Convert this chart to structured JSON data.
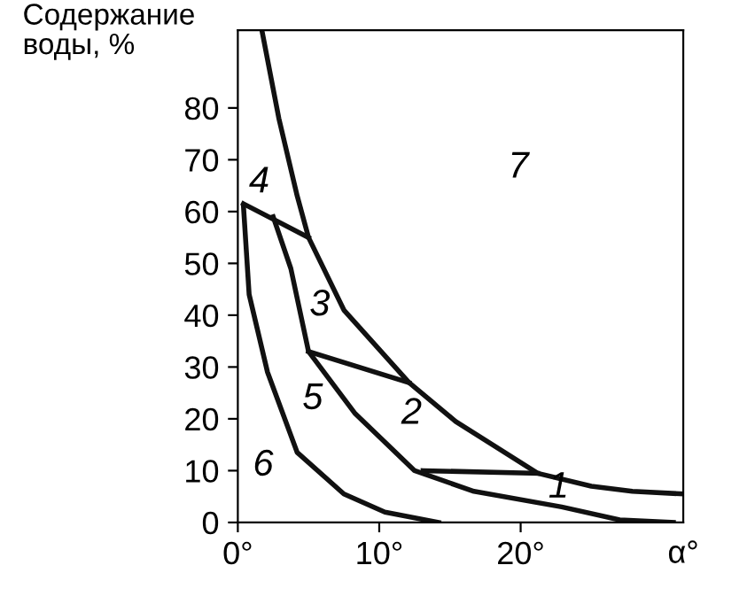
{
  "chart_data": {
    "type": "line",
    "ylabel": "Содержание воды, %",
    "xlabel": "α°",
    "xlim": [
      0,
      31.5
    ],
    "xticks": [
      {
        "value": 0,
        "label": "0°"
      },
      {
        "value": 10,
        "label": "10°"
      },
      {
        "value": 20,
        "label": "20°"
      }
    ],
    "ylim": [
      0,
      95
    ],
    "yticks": [
      0,
      10,
      20,
      30,
      40,
      50,
      60,
      70,
      80
    ],
    "grid": false,
    "marker": "none",
    "line_style": "solid",
    "series": [
      {
        "color": "#111111",
        "x": [
          1.7,
          2.9,
          4.2,
          5,
          7.5,
          12.1,
          15.4,
          21.2,
          25,
          27.9,
          31.5
        ],
        "values": [
          95,
          78,
          63,
          55,
          41,
          27,
          19.5,
          9.5,
          7,
          6,
          5.5
        ]
      },
      {
        "color": "#111111",
        "x": [
          2.5,
          3.75,
          5,
          8.3,
          12.5,
          16.7,
          22.9,
          27,
          30.8
        ],
        "values": [
          59,
          49,
          33,
          21,
          10,
          6,
          3,
          0.5,
          0
        ]
      },
      {
        "color": "#111111",
        "x": [
          0.4,
          0.8,
          2.1,
          4.2,
          7.5,
          10.4,
          14.2
        ],
        "values": [
          61,
          44,
          29,
          13.5,
          5.5,
          2,
          0
        ]
      },
      {
        "color": "#111111",
        "x": [
          0.4,
          5
        ],
        "values": [
          61.5,
          55
        ]
      },
      {
        "color": "#111111",
        "x": [
          5,
          12.1
        ],
        "values": [
          33,
          27
        ]
      },
      {
        "color": "#111111",
        "x": [
          13.1,
          21.2
        ],
        "values": [
          10,
          9.5
        ]
      }
    ],
    "annotations": [
      "1",
      "2",
      "3",
      "4",
      "5",
      "6",
      "7"
    ]
  }
}
